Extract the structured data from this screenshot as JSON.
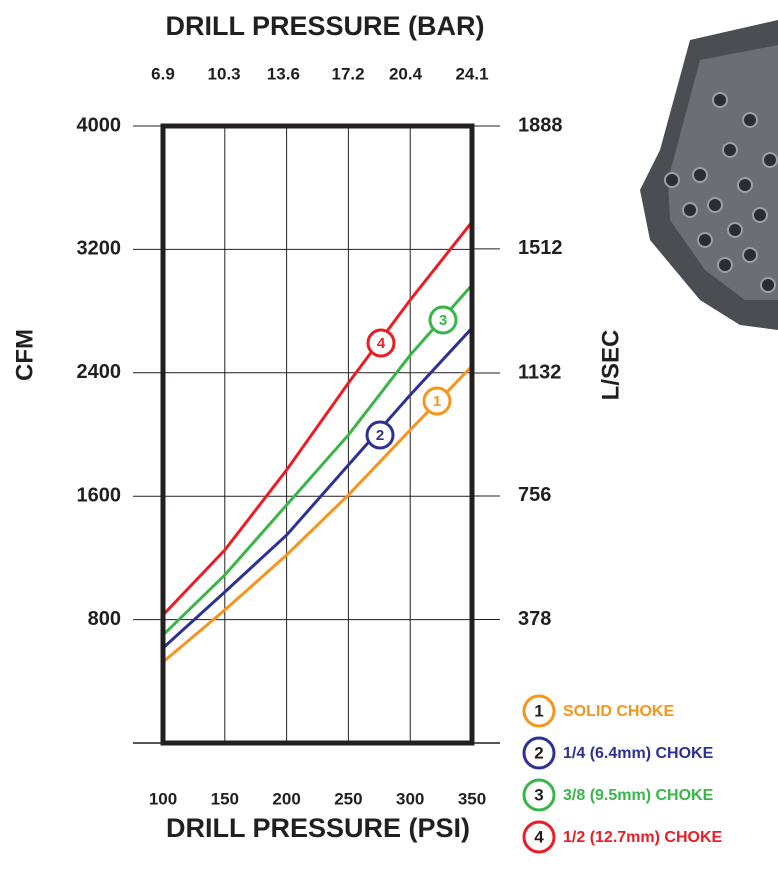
{
  "chart_data": {
    "type": "line",
    "title": "DRILL PRESSURE (BAR)",
    "x_label": "DRILL PRESSURE (PSI)",
    "y_label": "CFM",
    "y2_label": "L/SEC",
    "x": [
      100,
      150,
      200,
      250,
      300,
      350
    ],
    "xlim": [
      100,
      350
    ],
    "xticks": [
      100,
      150,
      200,
      250,
      300,
      350
    ],
    "x2lim": [
      6.9,
      24.1
    ],
    "x2ticks": [
      6.9,
      10.3,
      13.6,
      17.2,
      20.4,
      24.1
    ],
    "ylim": [
      0,
      4000
    ],
    "yticks": [
      800,
      1600,
      2400,
      3200,
      4000
    ],
    "y2lim": [
      0,
      1888
    ],
    "y2ticks": [
      378,
      756,
      1132,
      1512,
      1888
    ],
    "grid": true,
    "series": [
      {
        "label": "1",
        "name": "SOLID CHOKE",
        "color": "#f7941d",
        "values": [
          525,
          862,
          1219,
          1608,
          2029,
          2444
        ]
      },
      {
        "label": "2",
        "name": "1/4 (6.4mm) CHOKE",
        "color": "#2e3192",
        "values": [
          616,
          979,
          1348,
          1802,
          2256,
          2690
        ]
      },
      {
        "label": "3",
        "name": "3/8 (9.5mm) CHOKE",
        "color": "#39b54a",
        "values": [
          700,
          1089,
          1543,
          1997,
          2515,
          2969
        ]
      },
      {
        "label": "4",
        "name": "1/2 (12.7mm) CHOKE",
        "color": "#ed1c24",
        "values": [
          830,
          1251,
          1770,
          2334,
          2872,
          3378
        ]
      }
    ]
  }
}
